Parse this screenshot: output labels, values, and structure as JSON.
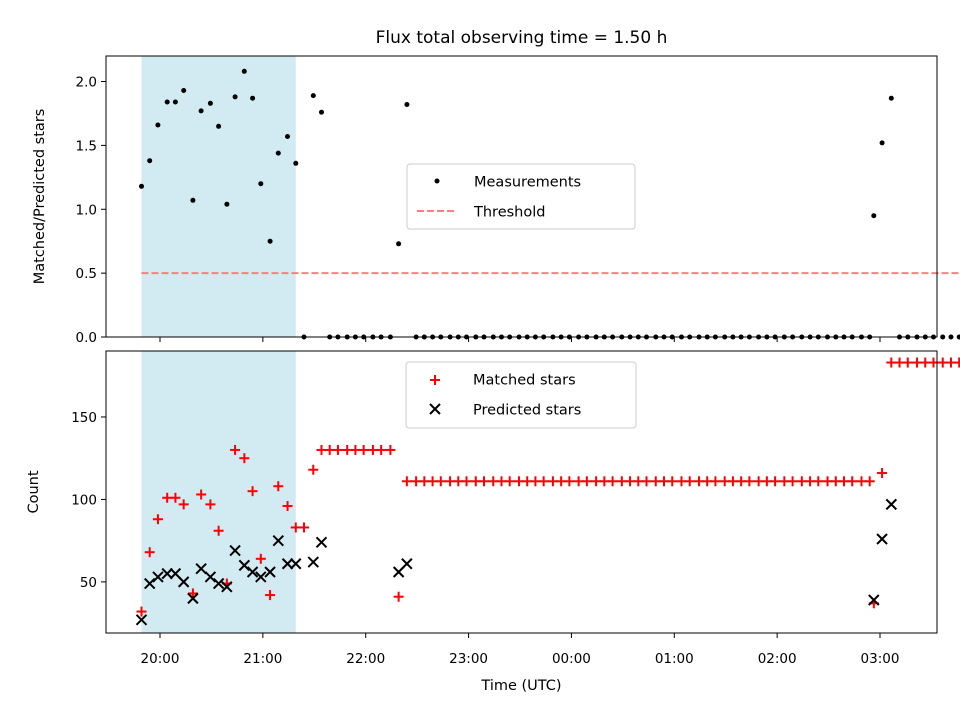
{
  "chart_data": [
    {
      "type": "scatter",
      "title": "Flux total observing time = 1.50 h",
      "xlabel": "",
      "ylabel": "Matched/Predicted stars",
      "ylim": [
        0,
        2.2
      ],
      "yticks": [
        "0.0",
        "0.5",
        "1.0",
        "1.5",
        "2.0"
      ],
      "x_unit": "hours since 19:00 UTC",
      "shaded_span": [
        0.82,
        2.32
      ],
      "shade_color": "#add8e6",
      "legend_position": "center",
      "series": [
        {
          "name": "Measurements",
          "color": "#000000",
          "marker": "dot",
          "points": [
            [
              0.82,
              1.18
            ],
            [
              0.9,
              1.38
            ],
            [
              0.98,
              1.66
            ],
            [
              1.07,
              1.84
            ],
            [
              1.15,
              1.84
            ],
            [
              1.23,
              1.93
            ],
            [
              1.32,
              1.07
            ],
            [
              1.4,
              1.77
            ],
            [
              1.49,
              1.83
            ],
            [
              1.57,
              1.65
            ],
            [
              1.65,
              1.04
            ],
            [
              1.73,
              1.88
            ],
            [
              1.82,
              2.08
            ],
            [
              1.9,
              1.87
            ],
            [
              1.98,
              1.2
            ],
            [
              2.07,
              0.75
            ],
            [
              2.15,
              1.44
            ],
            [
              2.24,
              1.57
            ],
            [
              2.32,
              1.36
            ],
            [
              2.4,
              0.0
            ],
            [
              2.49,
              1.89
            ],
            [
              2.57,
              1.76
            ],
            [
              2.65,
              0.0
            ],
            [
              2.73,
              0.0
            ],
            [
              2.82,
              0.0
            ],
            [
              2.9,
              0.0
            ],
            [
              2.98,
              0.0
            ],
            [
              3.07,
              0.0
            ],
            [
              3.15,
              0.0
            ],
            [
              3.24,
              0.0
            ],
            [
              3.32,
              0.73
            ],
            [
              3.4,
              1.82
            ],
            [
              3.49,
              0.0
            ],
            [
              3.57,
              0.0
            ],
            [
              3.65,
              0.0
            ],
            [
              3.73,
              0.0
            ],
            [
              3.82,
              0.0
            ],
            [
              3.9,
              0.0
            ],
            [
              3.98,
              0.0
            ],
            [
              4.07,
              0.0
            ],
            [
              4.15,
              0.0
            ],
            [
              4.24,
              0.0
            ],
            [
              4.32,
              0.0
            ],
            [
              4.4,
              0.0
            ],
            [
              4.49,
              0.0
            ],
            [
              4.57,
              0.0
            ],
            [
              4.65,
              0.0
            ],
            [
              4.73,
              0.0
            ],
            [
              4.82,
              0.0
            ],
            [
              4.9,
              0.0
            ],
            [
              4.98,
              0.0
            ],
            [
              5.07,
              0.0
            ],
            [
              5.15,
              0.0
            ],
            [
              5.24,
              0.0
            ],
            [
              5.32,
              0.0
            ],
            [
              5.4,
              0.0
            ],
            [
              5.49,
              0.0
            ],
            [
              5.57,
              0.0
            ],
            [
              5.65,
              0.0
            ],
            [
              5.73,
              0.0
            ],
            [
              5.82,
              0.0
            ],
            [
              5.9,
              0.0
            ],
            [
              5.98,
              0.0
            ],
            [
              6.07,
              0.0
            ],
            [
              6.15,
              0.0
            ],
            [
              6.24,
              0.0
            ],
            [
              6.32,
              0.0
            ],
            [
              6.4,
              0.0
            ],
            [
              6.49,
              0.0
            ],
            [
              6.57,
              0.0
            ],
            [
              6.65,
              0.0
            ],
            [
              6.73,
              0.0
            ],
            [
              6.82,
              0.0
            ],
            [
              6.9,
              0.0
            ],
            [
              6.98,
              0.0
            ],
            [
              7.07,
              0.0
            ],
            [
              7.15,
              0.0
            ],
            [
              7.24,
              0.0
            ],
            [
              7.32,
              0.0
            ],
            [
              7.4,
              0.0
            ],
            [
              7.49,
              0.0
            ],
            [
              7.57,
              0.0
            ],
            [
              7.65,
              0.0
            ],
            [
              7.73,
              0.0
            ],
            [
              7.82,
              0.0
            ],
            [
              7.9,
              0.0
            ],
            [
              7.94,
              0.95
            ],
            [
              8.02,
              1.52
            ],
            [
              8.11,
              1.87
            ],
            [
              8.19,
              0.0
            ],
            [
              8.27,
              0.0
            ],
            [
              8.36,
              0.0
            ],
            [
              8.44,
              0.0
            ],
            [
              8.52,
              0.0
            ],
            [
              8.61,
              0.0
            ],
            [
              8.69,
              0.0
            ],
            [
              8.77,
              0.0
            ],
            [
              8.86,
              0.0
            ],
            [
              8.94,
              0.0
            ],
            [
              9.02,
              0.0
            ],
            [
              9.11,
              0.0
            ],
            [
              9.19,
              0.0
            ]
          ]
        },
        {
          "name": "Threshold",
          "color": "#ff7f7f",
          "marker": "dashed-line",
          "line": [
            [
              0.82,
              0.5
            ],
            [
              9.19,
              0.5
            ]
          ]
        }
      ]
    },
    {
      "type": "scatter",
      "title": "",
      "xlabel": "Time (UTC)",
      "ylabel": "Count",
      "ylim": [
        19,
        190
      ],
      "yticks": [
        "50",
        "100",
        "150"
      ],
      "xticks": [
        "20:00",
        "21:00",
        "22:00",
        "23:00",
        "00:00",
        "01:00",
        "02:00",
        "03:00"
      ],
      "x_unit": "hours since 19:00 UTC",
      "shaded_span": [
        0.82,
        2.32
      ],
      "shade_color": "#add8e6",
      "legend_position": "upper center",
      "series": [
        {
          "name": "Matched stars",
          "color": "#ff0000",
          "marker": "plus",
          "points": [
            [
              0.82,
              32
            ],
            [
              0.9,
              68
            ],
            [
              0.98,
              88
            ],
            [
              1.07,
              101
            ],
            [
              1.15,
              101
            ],
            [
              1.23,
              97
            ],
            [
              1.32,
              43
            ],
            [
              1.4,
              103
            ],
            [
              1.49,
              97
            ],
            [
              1.57,
              81
            ],
            [
              1.65,
              49
            ],
            [
              1.73,
              130
            ],
            [
              1.82,
              125
            ],
            [
              1.9,
              105
            ],
            [
              1.98,
              64
            ],
            [
              2.07,
              42
            ],
            [
              2.15,
              108
            ],
            [
              2.24,
              96
            ],
            [
              2.32,
              83
            ],
            [
              2.4,
              83
            ],
            [
              2.49,
              118
            ],
            [
              2.57,
              130
            ],
            [
              2.65,
              130
            ],
            [
              2.73,
              130
            ],
            [
              2.82,
              130
            ],
            [
              2.9,
              130
            ],
            [
              2.98,
              130
            ],
            [
              3.07,
              130
            ],
            [
              3.15,
              130
            ],
            [
              3.24,
              130
            ],
            [
              3.32,
              41
            ],
            [
              3.4,
              111
            ],
            [
              3.49,
              111
            ],
            [
              3.57,
              111
            ],
            [
              3.65,
              111
            ],
            [
              3.73,
              111
            ],
            [
              3.82,
              111
            ],
            [
              3.9,
              111
            ],
            [
              3.98,
              111
            ],
            [
              4.07,
              111
            ],
            [
              4.15,
              111
            ],
            [
              4.24,
              111
            ],
            [
              4.32,
              111
            ],
            [
              4.4,
              111
            ],
            [
              4.49,
              111
            ],
            [
              4.57,
              111
            ],
            [
              4.65,
              111
            ],
            [
              4.73,
              111
            ],
            [
              4.82,
              111
            ],
            [
              4.9,
              111
            ],
            [
              4.98,
              111
            ],
            [
              5.07,
              111
            ],
            [
              5.15,
              111
            ],
            [
              5.24,
              111
            ],
            [
              5.32,
              111
            ],
            [
              5.4,
              111
            ],
            [
              5.49,
              111
            ],
            [
              5.57,
              111
            ],
            [
              5.65,
              111
            ],
            [
              5.73,
              111
            ],
            [
              5.82,
              111
            ],
            [
              5.9,
              111
            ],
            [
              5.98,
              111
            ],
            [
              6.07,
              111
            ],
            [
              6.15,
              111
            ],
            [
              6.24,
              111
            ],
            [
              6.32,
              111
            ],
            [
              6.4,
              111
            ],
            [
              6.49,
              111
            ],
            [
              6.57,
              111
            ],
            [
              6.65,
              111
            ],
            [
              6.73,
              111
            ],
            [
              6.82,
              111
            ],
            [
              6.9,
              111
            ],
            [
              6.98,
              111
            ],
            [
              7.07,
              111
            ],
            [
              7.15,
              111
            ],
            [
              7.24,
              111
            ],
            [
              7.32,
              111
            ],
            [
              7.4,
              111
            ],
            [
              7.49,
              111
            ],
            [
              7.57,
              111
            ],
            [
              7.65,
              111
            ],
            [
              7.73,
              111
            ],
            [
              7.82,
              111
            ],
            [
              7.9,
              111
            ],
            [
              7.94,
              37
            ],
            [
              8.02,
              116
            ],
            [
              8.11,
              183
            ],
            [
              8.19,
              183
            ],
            [
              8.27,
              183
            ],
            [
              8.36,
              183
            ],
            [
              8.44,
              183
            ],
            [
              8.52,
              183
            ],
            [
              8.61,
              183
            ],
            [
              8.69,
              183
            ],
            [
              8.77,
              183
            ],
            [
              8.86,
              183
            ],
            [
              8.94,
              183
            ],
            [
              9.02,
              183
            ],
            [
              9.11,
              183
            ],
            [
              9.19,
              183
            ]
          ]
        },
        {
          "name": "Predicted stars",
          "color": "#000000",
          "marker": "x",
          "points": [
            [
              0.82,
              27
            ],
            [
              0.9,
              49
            ],
            [
              0.98,
              53
            ],
            [
              1.07,
              55
            ],
            [
              1.15,
              55
            ],
            [
              1.23,
              50
            ],
            [
              1.32,
              40
            ],
            [
              1.4,
              58
            ],
            [
              1.49,
              53
            ],
            [
              1.57,
              49
            ],
            [
              1.65,
              47
            ],
            [
              1.73,
              69
            ],
            [
              1.82,
              60
            ],
            [
              1.9,
              56
            ],
            [
              1.98,
              53
            ],
            [
              2.07,
              56
            ],
            [
              2.15,
              75
            ],
            [
              2.24,
              61
            ],
            [
              2.32,
              61
            ],
            [
              2.49,
              62
            ],
            [
              2.57,
              74
            ],
            [
              3.32,
              56
            ],
            [
              3.4,
              61
            ],
            [
              7.94,
              39
            ],
            [
              8.02,
              76
            ],
            [
              8.11,
              97
            ]
          ]
        }
      ]
    }
  ]
}
